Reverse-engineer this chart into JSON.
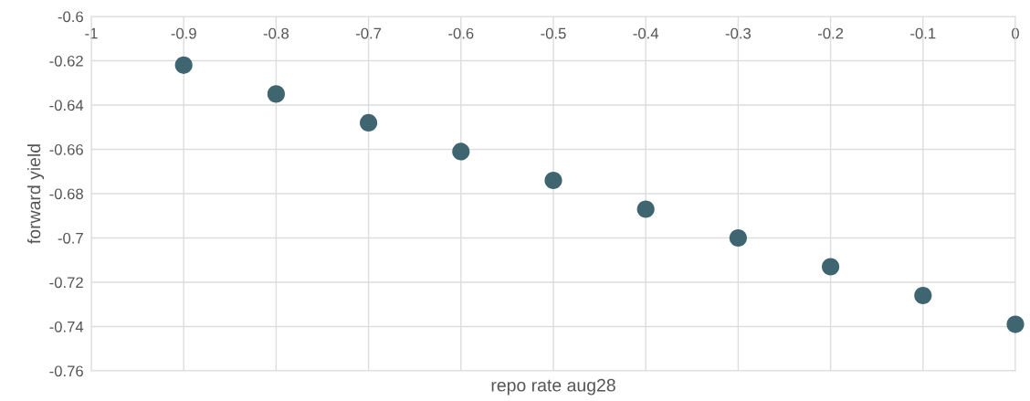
{
  "chart_data": {
    "type": "scatter",
    "xlabel": "repo rate aug28",
    "ylabel": "forward yield",
    "x": [
      -0.9,
      -0.8,
      -0.7,
      -0.6,
      -0.5,
      -0.4,
      -0.3,
      -0.2,
      -0.1,
      0
    ],
    "series": [
      {
        "color": "#3e6570",
        "values": [
          -0.622,
          -0.635,
          -0.648,
          -0.661,
          -0.674,
          -0.687,
          -0.7,
          -0.713,
          -0.726,
          -0.739
        ]
      }
    ],
    "xlim": [
      -1,
      0
    ],
    "xticks": [
      -1,
      -0.9,
      -0.8,
      -0.7,
      -0.6,
      -0.5,
      -0.4,
      -0.3,
      -0.2,
      -0.1,
      0
    ],
    "ylim": [
      -0.76,
      -0.6
    ],
    "yticks": [
      -0.76,
      -0.74,
      -0.72,
      -0.7,
      -0.68,
      -0.66,
      -0.64,
      -0.62,
      -0.6
    ],
    "grid": true,
    "marker": "circle"
  }
}
